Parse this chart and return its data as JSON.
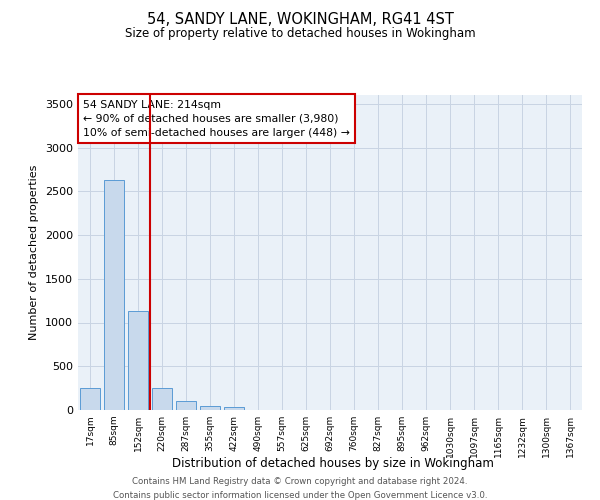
{
  "title": "54, SANDY LANE, WOKINGHAM, RG41 4ST",
  "subtitle": "Size of property relative to detached houses in Wokingham",
  "xlabel": "Distribution of detached houses by size in Wokingham",
  "ylabel": "Number of detached properties",
  "bar_color": "#c8d9ec",
  "bar_edge_color": "#5b9bd5",
  "background_color": "#ffffff",
  "plot_bg_color": "#eaf1f8",
  "grid_color": "#c8d4e3",
  "vline_color": "#cc0000",
  "annotation_box_edge_color": "#cc0000",
  "annotation_text_line1": "54 SANDY LANE: 214sqm",
  "annotation_text_line2": "← 90% of detached houses are smaller (3,980)",
  "annotation_text_line3": "10% of semi-detached houses are larger (448) →",
  "categories": [
    "17sqm",
    "85sqm",
    "152sqm",
    "220sqm",
    "287sqm",
    "355sqm",
    "422sqm",
    "490sqm",
    "557sqm",
    "625sqm",
    "692sqm",
    "760sqm",
    "827sqm",
    "895sqm",
    "962sqm",
    "1030sqm",
    "1097sqm",
    "1165sqm",
    "1232sqm",
    "1300sqm",
    "1367sqm"
  ],
  "values": [
    250,
    2630,
    1130,
    255,
    100,
    50,
    38,
    0,
    0,
    0,
    0,
    0,
    0,
    0,
    0,
    0,
    0,
    0,
    0,
    0,
    0
  ],
  "ylim": [
    0,
    3600
  ],
  "yticks": [
    0,
    500,
    1000,
    1500,
    2000,
    2500,
    3000,
    3500
  ],
  "vline_x_idx": 2.5,
  "footer_line1": "Contains HM Land Registry data © Crown copyright and database right 2024.",
  "footer_line2": "Contains public sector information licensed under the Open Government Licence v3.0."
}
